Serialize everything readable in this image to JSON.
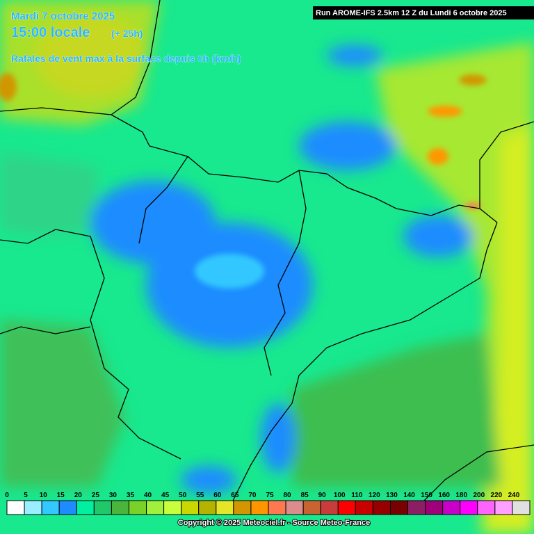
{
  "header": {
    "date": "Mardi 7 octobre 2025",
    "time": "15:00 locale",
    "offset": "(+ 25h)",
    "parameter": "Rafales de vent max à la surface depuis 0h (km/h)",
    "run": "Run AROME-IFS 2.5km 12 Z du Lundi 6 octobre 2025"
  },
  "legend": {
    "labels": [
      0,
      5,
      10,
      15,
      20,
      25,
      30,
      35,
      40,
      45,
      50,
      55,
      60,
      65,
      70,
      75,
      80,
      85,
      90,
      100,
      110,
      120,
      130,
      140,
      150,
      160,
      180,
      200,
      220,
      240
    ],
    "colors": [
      "#ffffff",
      "#9beeff",
      "#33c8ff",
      "#1e8cff",
      "#00f0a0",
      "#20c86a",
      "#4ab43c",
      "#7ad228",
      "#a0f03c",
      "#c8ff3c",
      "#c8d800",
      "#b4b400",
      "#e6e628",
      "#d29600",
      "#ff9600",
      "#ff7850",
      "#dc8c8c",
      "#c86432",
      "#c83c3c",
      "#ff0000",
      "#c80000",
      "#960000",
      "#780000",
      "#8c1e64",
      "#a0007a",
      "#c800c8",
      "#ff00ff",
      "#ff64ff",
      "#ffa0ff",
      "#e0e0e0"
    ]
  },
  "footer": {
    "copyright": "Copyright © 2025 Meteociel.fr - Source Meteo-France"
  }
}
